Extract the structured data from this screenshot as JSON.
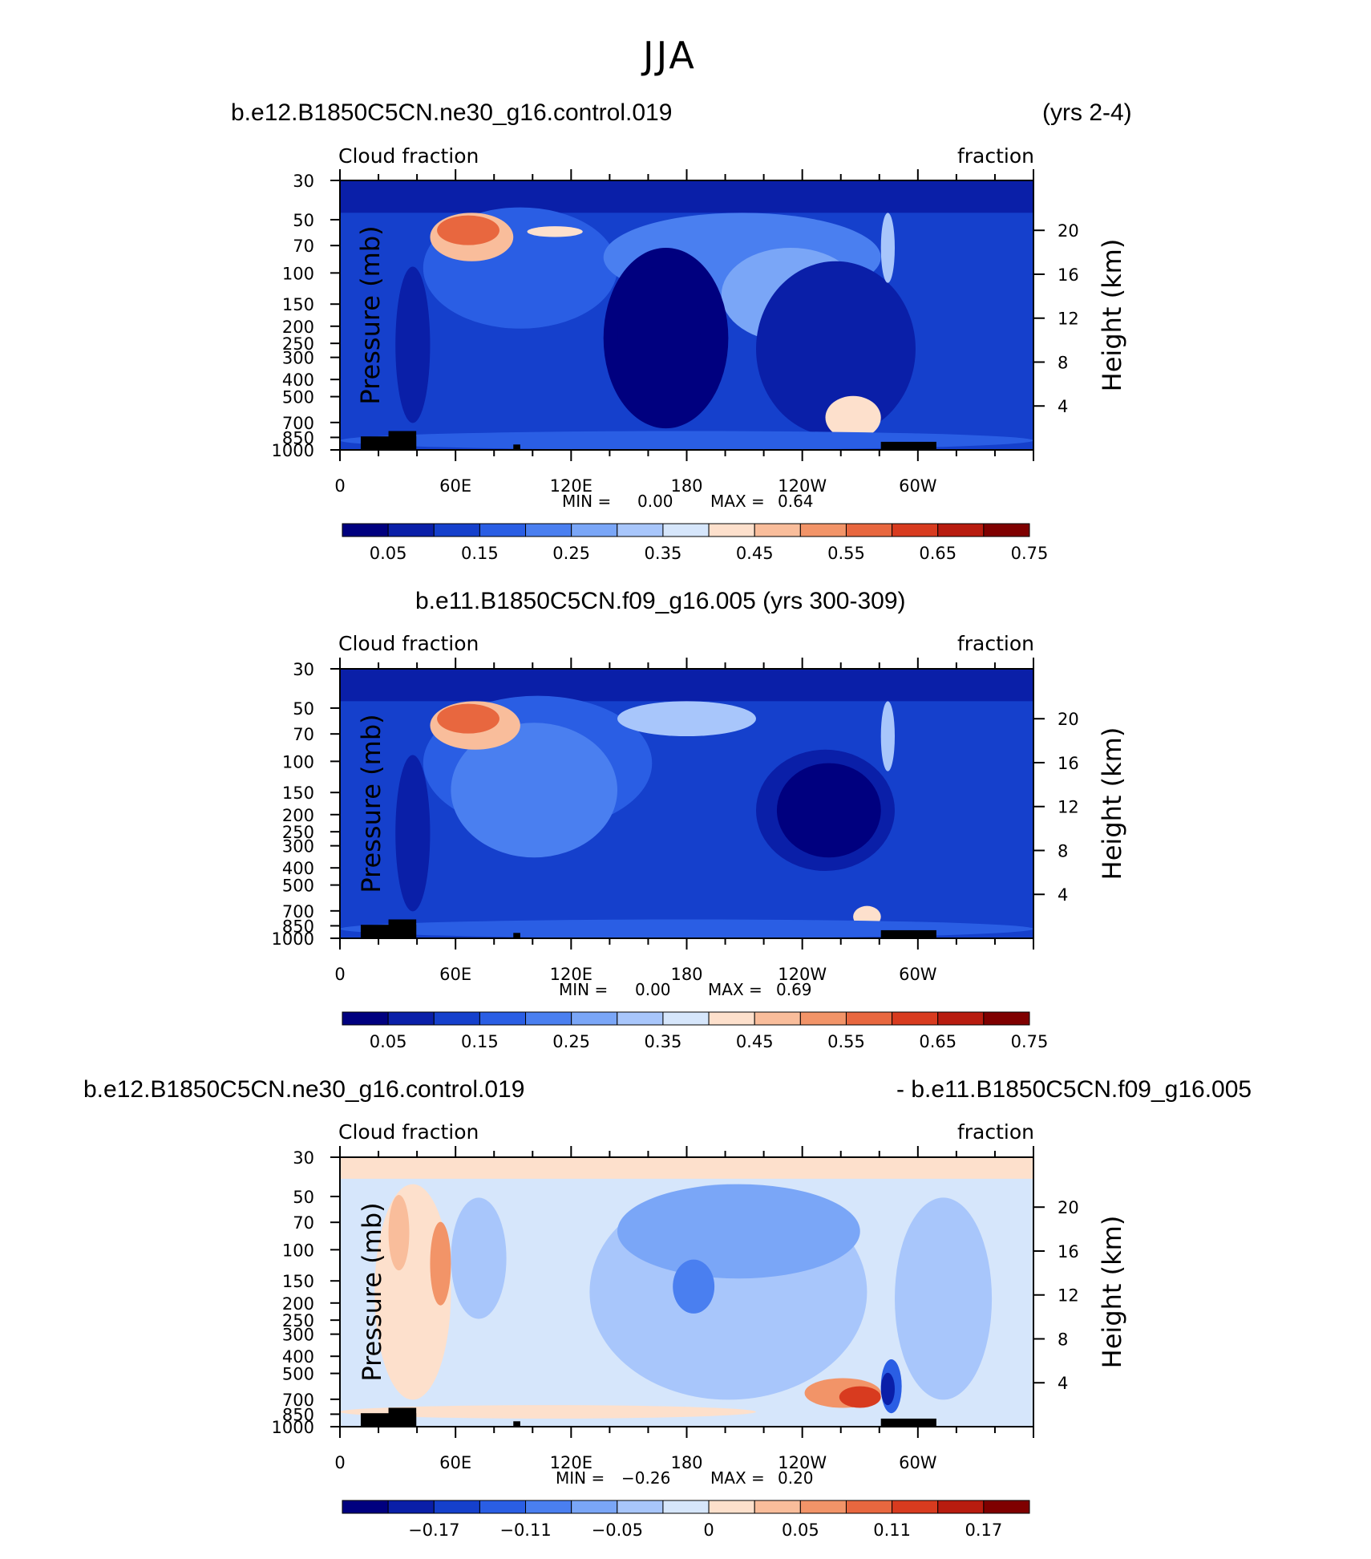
{
  "page": {
    "title": "JJA"
  },
  "panels": [
    {
      "left_title": "b.e12.B1850C5CN.ne30_g16.control.019",
      "right_title": "(yrs 2-4)",
      "center_title": "",
      "var_label": "Cloud fraction",
      "unit_label": "fraction",
      "left_axis_label": "Pressure (mb)",
      "right_axis_label": "Height (km)",
      "min_label": "MIN =",
      "min_value": "0.00",
      "max_label": "MAX =",
      "max_value": "0.64",
      "colorbar_labels": [
        "0.05",
        "0.15",
        "0.25",
        "0.35",
        "0.45",
        "0.55",
        "0.65",
        "0.75"
      ]
    },
    {
      "left_title": "",
      "right_title": "",
      "center_title": "b.e11.B1850C5CN.f09_g16.005 (yrs 300-309)",
      "var_label": "Cloud fraction",
      "unit_label": "fraction",
      "left_axis_label": "Pressure (mb)",
      "right_axis_label": "Height (km)",
      "min_label": "MIN =",
      "min_value": "0.00",
      "max_label": "MAX =",
      "max_value": "0.69",
      "colorbar_labels": [
        "0.05",
        "0.15",
        "0.25",
        "0.35",
        "0.45",
        "0.55",
        "0.65",
        "0.75"
      ]
    },
    {
      "left_title": "b.e12.B1850C5CN.ne30_g16.control.019",
      "right_title": "- b.e11.B1850C5CN.f09_g16.005",
      "center_title": "",
      "var_label": "Cloud fraction",
      "unit_label": "fraction",
      "left_axis_label": "Pressure (mb)",
      "right_axis_label": "Height (km)",
      "min_label": "MIN =",
      "min_value": "−0.26",
      "max_label": "MAX =",
      "max_value": "0.20",
      "colorbar_labels": [
        "−0.17",
        "−0.11",
        "−0.05",
        "0",
        "0.05",
        "0.11",
        "0.17"
      ]
    }
  ],
  "chart_data": [
    {
      "type": "heatmap",
      "x_ticks": [
        "0",
        "60E",
        "120E",
        "180",
        "120W",
        "60W"
      ],
      "x_tick_lon": [
        0,
        60,
        120,
        180,
        240,
        300
      ],
      "xlim": [
        0,
        360
      ],
      "y_ticks": [
        "30",
        "50",
        "70",
        "100",
        "150",
        "200",
        "250",
        "300",
        "400",
        "500",
        "700",
        "850",
        "1000"
      ],
      "y_tick_p": [
        30,
        50,
        70,
        100,
        150,
        200,
        250,
        300,
        400,
        500,
        700,
        850,
        1000
      ],
      "ylim": [
        1000,
        30
      ],
      "height_ticks": [
        "20",
        "16",
        "12",
        "8",
        "4"
      ],
      "height_tick_km": [
        20,
        16,
        12,
        8,
        4
      ],
      "colors": [
        "#00007f",
        "#0a1fa8",
        "#1540cc",
        "#2a5ee4",
        "#4a7ff0",
        "#7aa6f7",
        "#a8c6fb",
        "#d6e6fb",
        "#fde0cc",
        "#f9bd9b",
        "#f29468",
        "#e8673f",
        "#d83b1f",
        "#b81c0f",
        "#7f0000"
      ],
      "min": 0.0,
      "max": 0.64
    },
    {
      "type": "heatmap",
      "x_ticks": [
        "0",
        "60E",
        "120E",
        "180",
        "120W",
        "60W"
      ],
      "x_tick_lon": [
        0,
        60,
        120,
        180,
        240,
        300
      ],
      "xlim": [
        0,
        360
      ],
      "y_ticks": [
        "30",
        "50",
        "70",
        "100",
        "150",
        "200",
        "250",
        "300",
        "400",
        "500",
        "700",
        "850",
        "1000"
      ],
      "y_tick_p": [
        30,
        50,
        70,
        100,
        150,
        200,
        250,
        300,
        400,
        500,
        700,
        850,
        1000
      ],
      "ylim": [
        1000,
        30
      ],
      "height_ticks": [
        "20",
        "16",
        "12",
        "8",
        "4"
      ],
      "height_tick_km": [
        20,
        16,
        12,
        8,
        4
      ],
      "colors": [
        "#00007f",
        "#0a1fa8",
        "#1540cc",
        "#2a5ee4",
        "#4a7ff0",
        "#7aa6f7",
        "#a8c6fb",
        "#d6e6fb",
        "#fde0cc",
        "#f9bd9b",
        "#f29468",
        "#e8673f",
        "#d83b1f",
        "#b81c0f",
        "#7f0000"
      ],
      "min": 0.0,
      "max": 0.69
    },
    {
      "type": "heatmap",
      "x_ticks": [
        "0",
        "60E",
        "120E",
        "180",
        "120W",
        "60W"
      ],
      "x_tick_lon": [
        0,
        60,
        120,
        180,
        240,
        300
      ],
      "xlim": [
        0,
        360
      ],
      "y_ticks": [
        "30",
        "50",
        "70",
        "100",
        "150",
        "200",
        "250",
        "300",
        "400",
        "500",
        "700",
        "850",
        "1000"
      ],
      "y_tick_p": [
        30,
        50,
        70,
        100,
        150,
        200,
        250,
        300,
        400,
        500,
        700,
        850,
        1000
      ],
      "ylim": [
        1000,
        30
      ],
      "height_ticks": [
        "20",
        "16",
        "12",
        "8",
        "4"
      ],
      "height_tick_km": [
        20,
        16,
        12,
        8,
        4
      ],
      "colors": [
        "#00007f",
        "#0a1fa8",
        "#1540cc",
        "#2a5ee4",
        "#4a7ff0",
        "#7aa6f7",
        "#a8c6fb",
        "#d6e6fb",
        "#fde0cc",
        "#f9bd9b",
        "#f29468",
        "#e8673f",
        "#d83b1f",
        "#b81c0f",
        "#7f0000"
      ],
      "min": -0.26,
      "max": 0.2
    }
  ]
}
